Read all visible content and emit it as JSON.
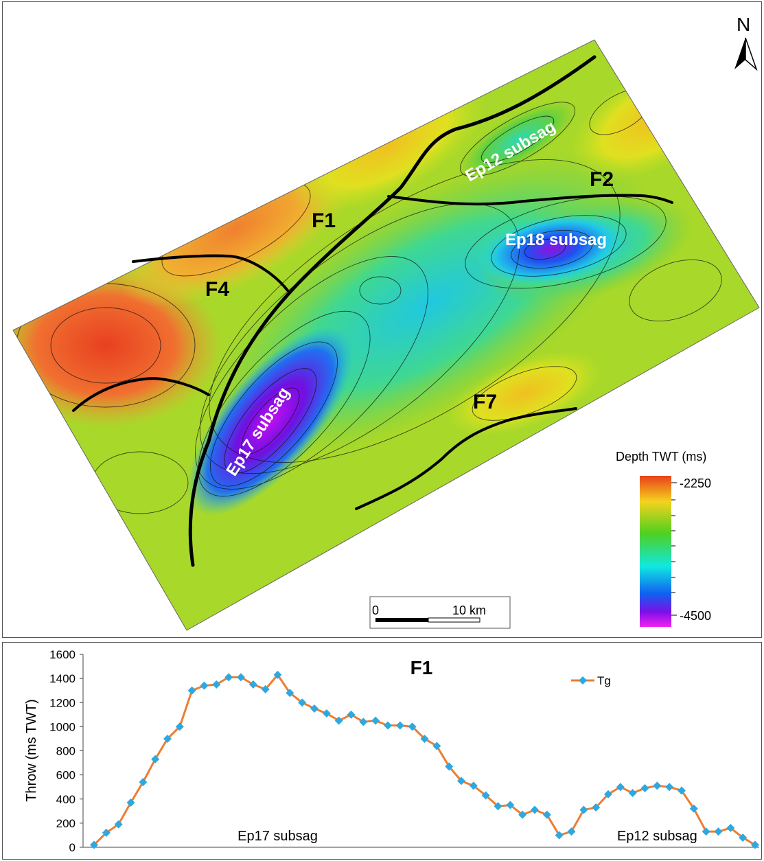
{
  "map": {
    "north_label": "N",
    "faults": [
      {
        "name": "F1"
      },
      {
        "name": "F2"
      },
      {
        "name": "F4"
      },
      {
        "name": "F7"
      }
    ],
    "subsags": [
      {
        "name": "Ep12 subsag"
      },
      {
        "name": "Ep18 subsag"
      },
      {
        "name": "Ep17 subsag"
      }
    ],
    "legend": {
      "title": "Depth TWT (ms)",
      "top_value": "-2250",
      "bottom_value": "-4500",
      "colors": [
        "#e8401a",
        "#f5d21e",
        "#4fd020",
        "#10e8e0",
        "#1060f0",
        "#7a10e8",
        "#f020f0"
      ]
    },
    "scale_bar": {
      "start": "0",
      "end": "10 km"
    }
  },
  "chart_data": {
    "type": "line",
    "title": "F1",
    "ylabel": "Throw (ms TWT)",
    "xlabel": "",
    "ylim": [
      0,
      1600
    ],
    "yticks": [
      "0",
      "200",
      "400",
      "600",
      "800",
      "1000",
      "1200",
      "1400",
      "1600"
    ],
    "grid": false,
    "legend_position": "top-right",
    "line_color": "#ed7d31",
    "marker_color": "#2ea8e0",
    "series": [
      {
        "name": "Tg",
        "values": [
          20,
          120,
          190,
          370,
          540,
          730,
          900,
          1000,
          1300,
          1340,
          1350,
          1410,
          1410,
          1350,
          1310,
          1430,
          1280,
          1200,
          1150,
          1110,
          1050,
          1100,
          1040,
          1050,
          1010,
          1010,
          1000,
          900,
          840,
          670,
          550,
          510,
          430,
          340,
          350,
          270,
          310,
          270,
          100,
          130,
          310,
          330,
          440,
          500,
          450,
          490,
          510,
          500,
          470,
          320,
          130,
          130,
          160,
          80,
          20
        ]
      }
    ],
    "annotations": [
      {
        "text": "Ep17 subsag",
        "x_index": 15
      },
      {
        "text": "Ep12 subsag",
        "x_index": 46
      }
    ]
  }
}
